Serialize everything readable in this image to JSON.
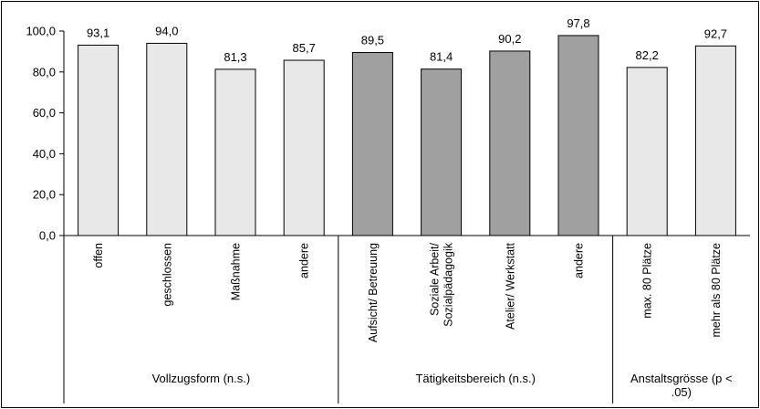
{
  "chart_data": {
    "type": "bar",
    "title": "",
    "xlabel": "",
    "ylabel": "",
    "ylim": [
      0,
      100
    ],
    "yticks": [
      "0,0",
      "20,0",
      "40,0",
      "60,0",
      "80,0",
      "100,0"
    ],
    "grid": false,
    "legend": "none",
    "colors": {
      "light": "#e8e8e8",
      "dark": "#a0a0a0",
      "stroke": "#000000"
    },
    "categories": [
      {
        "label": [
          "offen"
        ],
        "value": 93.1,
        "value_label": "93,1",
        "color": "light"
      },
      {
        "label": [
          "geschlossen"
        ],
        "value": 94.0,
        "value_label": "94,0",
        "color": "light"
      },
      {
        "label": [
          "Maßnahme"
        ],
        "value": 81.3,
        "value_label": "81,3",
        "color": "light"
      },
      {
        "label": [
          "andere"
        ],
        "value": 85.7,
        "value_label": "85,7",
        "color": "light"
      },
      {
        "label": [
          "Aufsicht/ Betreuung"
        ],
        "value": 89.5,
        "value_label": "89,5",
        "color": "dark"
      },
      {
        "label": [
          "Soziale Arbeit/",
          "Sozialpädagogik"
        ],
        "value": 81.4,
        "value_label": "81,4",
        "color": "dark"
      },
      {
        "label": [
          "Atelier/ Werkstatt"
        ],
        "value": 90.2,
        "value_label": "90,2",
        "color": "dark"
      },
      {
        "label": [
          "andere"
        ],
        "value": 97.8,
        "value_label": "97,8",
        "color": "dark"
      },
      {
        "label": [
          "max. 80 Plätze"
        ],
        "value": 82.2,
        "value_label": "82,2",
        "color": "light"
      },
      {
        "label": [
          "mehr als 80 Plätze"
        ],
        "value": 92.7,
        "value_label": "92,7",
        "color": "light"
      }
    ],
    "groups": [
      {
        "label": [
          "Vollzugsform (n.s.)"
        ],
        "start": 0,
        "end": 3
      },
      {
        "label": [
          "Tätigkeitsbereich (n.s.)"
        ],
        "start": 4,
        "end": 7
      },
      {
        "label": [
          "Anstaltsgrösse (p <",
          ".05)"
        ],
        "start": 8,
        "end": 9
      }
    ]
  }
}
